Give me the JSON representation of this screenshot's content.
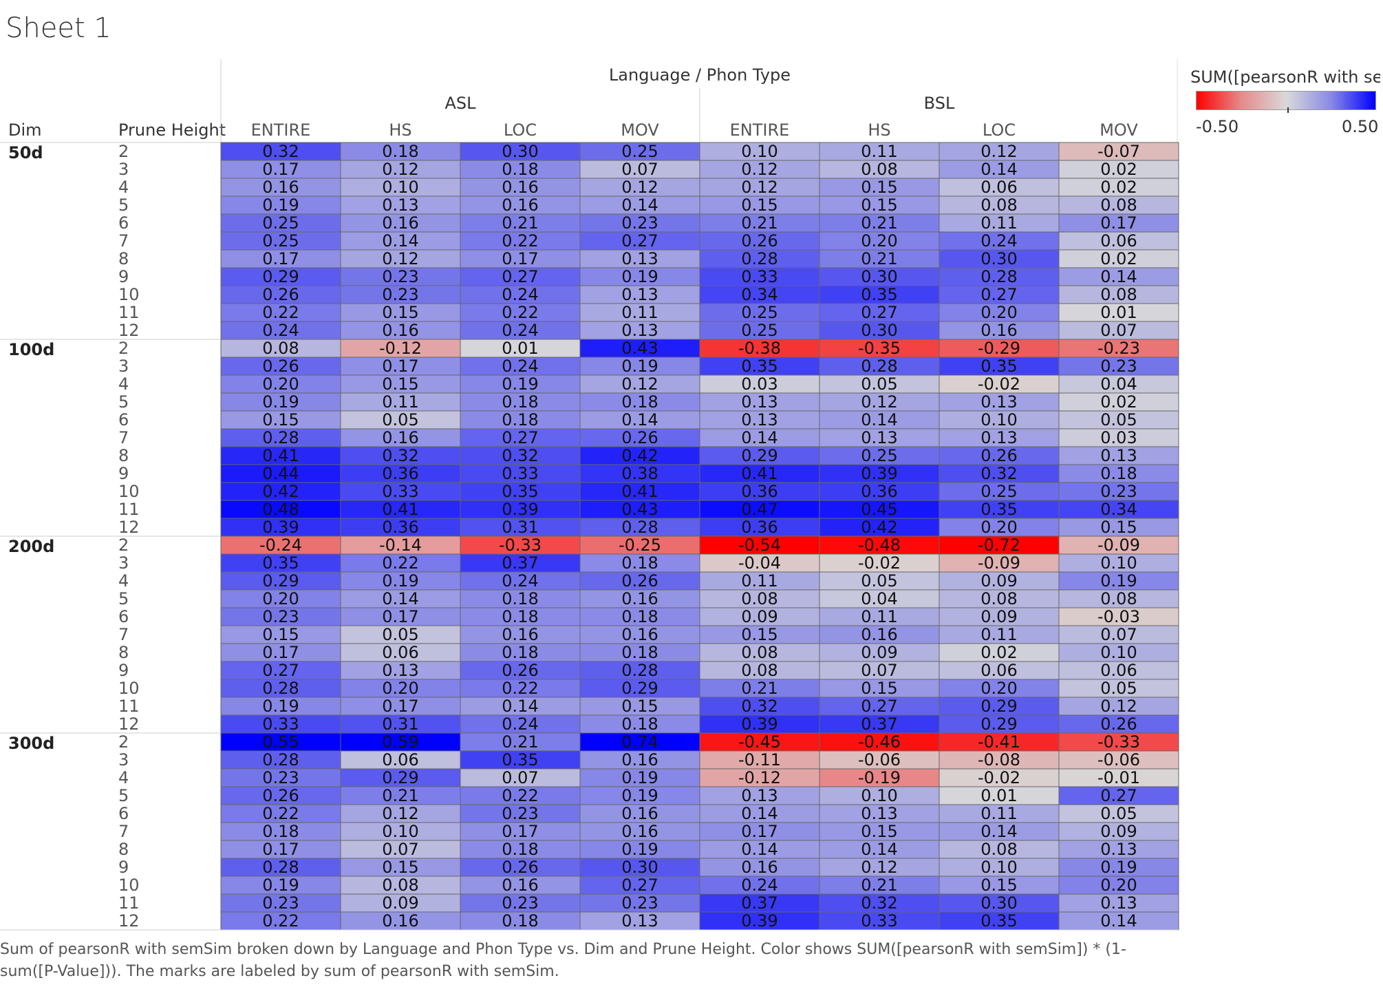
{
  "sheet_title": "Sheet 1",
  "caption": "Sum of pearsonR with semSim broken down by Language and Phon Type vs. Dim and Prune Height.  Color shows SUM([pearsonR with semSim]) * (1-sum([P-Value])).  The marks are labeled by sum of pearsonR with semSim.",
  "legend": {
    "title": "SUM([pearsonR with se..",
    "min_label": "-0.50",
    "max_label": "0.50",
    "range": [
      -0.5,
      0.5
    ],
    "colors": {
      "negative": "#ff0000",
      "neutral": "#d9d9d9",
      "positive": "#0000ff"
    }
  },
  "chart_data": {
    "type": "heatmap",
    "column_header_title": "Language  /  Phon Type",
    "row_header_titles": [
      "Dim",
      "Prune Height"
    ],
    "languages": [
      "ASL",
      "BSL"
    ],
    "phon_types": [
      "ENTIRE",
      "HS",
      "LOC",
      "MOV"
    ],
    "prune_heights": [
      "2",
      "3",
      "4",
      "5",
      "6",
      "7",
      "8",
      "9",
      "10",
      "11",
      "12"
    ],
    "dims": [
      {
        "name": "50d",
        "values": [
          [
            "0.32",
            "0.18",
            "0.30",
            "0.25",
            "0.10",
            "0.11",
            "0.12",
            "-0.07"
          ],
          [
            "0.17",
            "0.12",
            "0.18",
            "0.07",
            "0.12",
            "0.08",
            "0.14",
            "0.02"
          ],
          [
            "0.16",
            "0.10",
            "0.16",
            "0.12",
            "0.12",
            "0.15",
            "0.06",
            "0.02"
          ],
          [
            "0.19",
            "0.13",
            "0.16",
            "0.14",
            "0.15",
            "0.15",
            "0.08",
            "0.08"
          ],
          [
            "0.25",
            "0.16",
            "0.21",
            "0.23",
            "0.21",
            "0.21",
            "0.11",
            "0.17"
          ],
          [
            "0.25",
            "0.14",
            "0.22",
            "0.27",
            "0.26",
            "0.20",
            "0.24",
            "0.06"
          ],
          [
            "0.17",
            "0.12",
            "0.17",
            "0.13",
            "0.28",
            "0.21",
            "0.30",
            "0.02"
          ],
          [
            "0.29",
            "0.23",
            "0.27",
            "0.19",
            "0.33",
            "0.30",
            "0.28",
            "0.14"
          ],
          [
            "0.26",
            "0.23",
            "0.24",
            "0.13",
            "0.34",
            "0.35",
            "0.27",
            "0.08"
          ],
          [
            "0.22",
            "0.15",
            "0.22",
            "0.11",
            "0.25",
            "0.27",
            "0.20",
            "0.01"
          ],
          [
            "0.24",
            "0.16",
            "0.24",
            "0.13",
            "0.25",
            "0.30",
            "0.16",
            "0.07"
          ]
        ]
      },
      {
        "name": "100d",
        "values": [
          [
            "0.08",
            "-0.12",
            "0.01",
            "0.43",
            "-0.38",
            "-0.35",
            "-0.29",
            "-0.23"
          ],
          [
            "0.26",
            "0.17",
            "0.24",
            "0.19",
            "0.35",
            "0.28",
            "0.35",
            "0.23"
          ],
          [
            "0.20",
            "0.15",
            "0.19",
            "0.12",
            "0.03",
            "0.05",
            "-0.02",
            "0.04"
          ],
          [
            "0.19",
            "0.11",
            "0.18",
            "0.18",
            "0.13",
            "0.12",
            "0.13",
            "0.02"
          ],
          [
            "0.15",
            "0.05",
            "0.18",
            "0.14",
            "0.13",
            "0.14",
            "0.10",
            "0.05"
          ],
          [
            "0.28",
            "0.16",
            "0.27",
            "0.26",
            "0.14",
            "0.13",
            "0.13",
            "0.03"
          ],
          [
            "0.41",
            "0.32",
            "0.32",
            "0.42",
            "0.29",
            "0.25",
            "0.26",
            "0.13"
          ],
          [
            "0.44",
            "0.36",
            "0.33",
            "0.38",
            "0.41",
            "0.39",
            "0.32",
            "0.18"
          ],
          [
            "0.42",
            "0.33",
            "0.35",
            "0.41",
            "0.36",
            "0.36",
            "0.25",
            "0.23"
          ],
          [
            "0.48",
            "0.41",
            "0.39",
            "0.43",
            "0.47",
            "0.45",
            "0.35",
            "0.34"
          ],
          [
            "0.39",
            "0.36",
            "0.31",
            "0.28",
            "0.36",
            "0.42",
            "0.20",
            "0.15"
          ]
        ]
      },
      {
        "name": "200d",
        "values": [
          [
            "-0.24",
            "-0.14",
            "-0.33",
            "-0.25",
            "-0.54",
            "-0.48",
            "-0.72",
            "-0.09"
          ],
          [
            "0.35",
            "0.22",
            "0.37",
            "0.18",
            "-0.04",
            "-0.02",
            "-0.09",
            "0.10"
          ],
          [
            "0.29",
            "0.19",
            "0.24",
            "0.26",
            "0.11",
            "0.05",
            "0.09",
            "0.19"
          ],
          [
            "0.20",
            "0.14",
            "0.18",
            "0.16",
            "0.08",
            "0.04",
            "0.08",
            "0.08"
          ],
          [
            "0.23",
            "0.17",
            "0.18",
            "0.18",
            "0.09",
            "0.11",
            "0.09",
            "-0.03"
          ],
          [
            "0.15",
            "0.05",
            "0.16",
            "0.16",
            "0.15",
            "0.16",
            "0.11",
            "0.07"
          ],
          [
            "0.17",
            "0.06",
            "0.18",
            "0.18",
            "0.08",
            "0.09",
            "0.02",
            "0.10"
          ],
          [
            "0.27",
            "0.13",
            "0.26",
            "0.28",
            "0.08",
            "0.07",
            "0.06",
            "0.06"
          ],
          [
            "0.28",
            "0.20",
            "0.22",
            "0.29",
            "0.21",
            "0.15",
            "0.20",
            "0.05"
          ],
          [
            "0.19",
            "0.17",
            "0.14",
            "0.15",
            "0.32",
            "0.27",
            "0.29",
            "0.12"
          ],
          [
            "0.33",
            "0.31",
            "0.24",
            "0.18",
            "0.39",
            "0.37",
            "0.29",
            "0.26"
          ]
        ]
      },
      {
        "name": "300d",
        "values": [
          [
            "0.55",
            "0.59",
            "0.21",
            "0.74",
            "-0.45",
            "-0.46",
            "-0.41",
            "-0.33"
          ],
          [
            "0.28",
            "0.06",
            "0.35",
            "0.16",
            "-0.11",
            "-0.06",
            "-0.08",
            "-0.06"
          ],
          [
            "0.23",
            "0.29",
            "0.07",
            "0.19",
            "-0.12",
            "-0.19",
            "-0.02",
            "-0.01"
          ],
          [
            "0.26",
            "0.21",
            "0.22",
            "0.19",
            "0.13",
            "0.10",
            "0.01",
            "0.27"
          ],
          [
            "0.22",
            "0.12",
            "0.23",
            "0.16",
            "0.14",
            "0.13",
            "0.11",
            "0.05"
          ],
          [
            "0.18",
            "0.10",
            "0.17",
            "0.16",
            "0.17",
            "0.15",
            "0.14",
            "0.09"
          ],
          [
            "0.17",
            "0.07",
            "0.18",
            "0.19",
            "0.14",
            "0.14",
            "0.08",
            "0.13"
          ],
          [
            "0.28",
            "0.15",
            "0.26",
            "0.30",
            "0.16",
            "0.12",
            "0.10",
            "0.19"
          ],
          [
            "0.19",
            "0.08",
            "0.16",
            "0.27",
            "0.24",
            "0.21",
            "0.15",
            "0.20"
          ],
          [
            "0.23",
            "0.09",
            "0.23",
            "0.23",
            "0.37",
            "0.32",
            "0.30",
            "0.13"
          ],
          [
            "0.22",
            "0.16",
            "0.18",
            "0.13",
            "0.39",
            "0.33",
            "0.35",
            "0.14"
          ]
        ]
      }
    ]
  }
}
